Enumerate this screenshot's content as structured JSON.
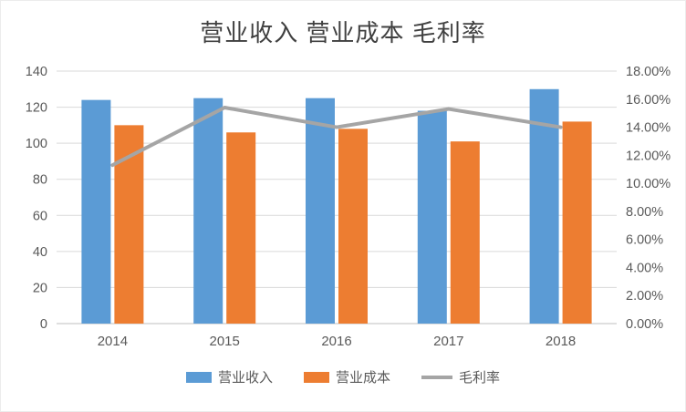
{
  "chart_data": {
    "type": "combo-bar-line",
    "title": "营业收入 营业成本 毛利率",
    "categories": [
      "2014",
      "2015",
      "2016",
      "2017",
      "2018"
    ],
    "series": [
      {
        "name": "营业收入",
        "type": "bar",
        "axis": "left",
        "color": "#5B9BD5",
        "values": [
          124,
          125,
          125,
          118,
          130
        ]
      },
      {
        "name": "营业成本",
        "type": "bar",
        "axis": "left",
        "color": "#ED7D31",
        "values": [
          110,
          106,
          108,
          101,
          112
        ]
      },
      {
        "name": "毛利率",
        "type": "line",
        "axis": "right",
        "color": "#A5A5A5",
        "values": [
          11.3,
          15.4,
          14.0,
          15.3,
          14.0
        ]
      }
    ],
    "left_axis": {
      "min": 0,
      "max": 140,
      "ticks": [
        0,
        20,
        40,
        60,
        80,
        100,
        120,
        140
      ]
    },
    "right_axis": {
      "min": 0,
      "max": 18,
      "tick_labels": [
        "0.00%",
        "2.00%",
        "4.00%",
        "6.00%",
        "8.00%",
        "10.00%",
        "12.00%",
        "14.00%",
        "16.00%",
        "18.00%"
      ]
    },
    "legend_position": "bottom",
    "grid": true,
    "colors": {
      "gridline": "#D9D9D9",
      "axis_line": "#BFBFBF",
      "text": "#595959",
      "title": "#404040"
    }
  }
}
